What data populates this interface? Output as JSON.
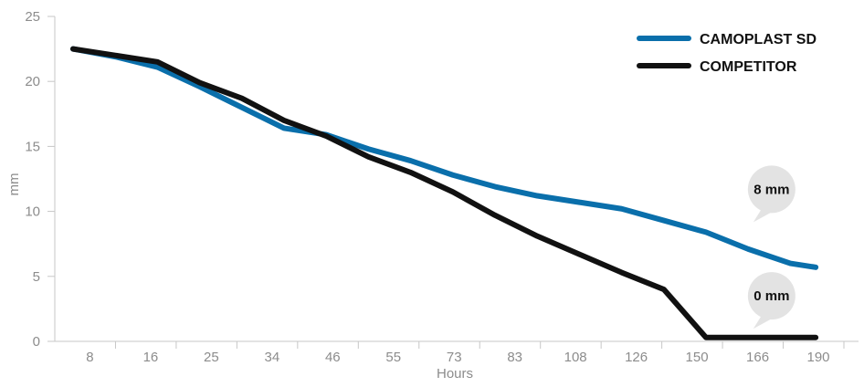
{
  "chart_data": {
    "type": "line",
    "xlabel": "Hours",
    "ylabel": "mm",
    "ylim": [
      0,
      25
    ],
    "yticks": [
      "0",
      "5",
      "10",
      "15",
      "20",
      "25"
    ],
    "x_tick_labels": [
      "8",
      "16",
      "25",
      "34",
      "46",
      "55",
      "73",
      "83",
      "108",
      "126",
      "150",
      "166",
      "190"
    ],
    "grid": false,
    "legend_position": "top-right",
    "series": [
      {
        "name": "CAMOPLAST SD",
        "color": "#0a6fab",
        "points": [
          [
            0.0,
            22.5
          ],
          [
            1.0,
            21.9
          ],
          [
            2.0,
            21.1
          ],
          [
            3.0,
            19.6
          ],
          [
            4.0,
            18.0
          ],
          [
            5.0,
            16.4
          ],
          [
            6.0,
            15.9
          ],
          [
            7.0,
            14.8
          ],
          [
            8.0,
            13.9
          ],
          [
            9.0,
            12.8
          ],
          [
            10.0,
            11.9
          ],
          [
            11.0,
            11.2
          ],
          [
            12.0,
            10.7
          ],
          [
            13.0,
            10.2
          ],
          [
            14.0,
            9.3
          ],
          [
            15.0,
            8.4
          ],
          [
            16.0,
            7.1
          ],
          [
            17.0,
            6.0
          ],
          [
            17.6,
            5.7
          ]
        ]
      },
      {
        "name": "COMPETITOR",
        "color": "#111111",
        "points": [
          [
            0.0,
            22.5
          ],
          [
            1.0,
            22.0
          ],
          [
            2.0,
            21.5
          ],
          [
            3.0,
            19.9
          ],
          [
            4.0,
            18.7
          ],
          [
            5.0,
            17.0
          ],
          [
            6.0,
            15.8
          ],
          [
            7.0,
            14.2
          ],
          [
            8.0,
            13.0
          ],
          [
            9.0,
            11.5
          ],
          [
            10.0,
            9.7
          ],
          [
            11.0,
            8.1
          ],
          [
            12.0,
            6.7
          ],
          [
            13.0,
            5.3
          ],
          [
            14.0,
            4.0
          ],
          [
            15.0,
            0.3
          ],
          [
            17.6,
            0.3
          ]
        ]
      }
    ],
    "annotations": [
      {
        "text": "8 mm",
        "x": 15.3,
        "y": 11.7
      },
      {
        "text": "0 mm",
        "x": 15.3,
        "y": 3.5
      }
    ]
  }
}
